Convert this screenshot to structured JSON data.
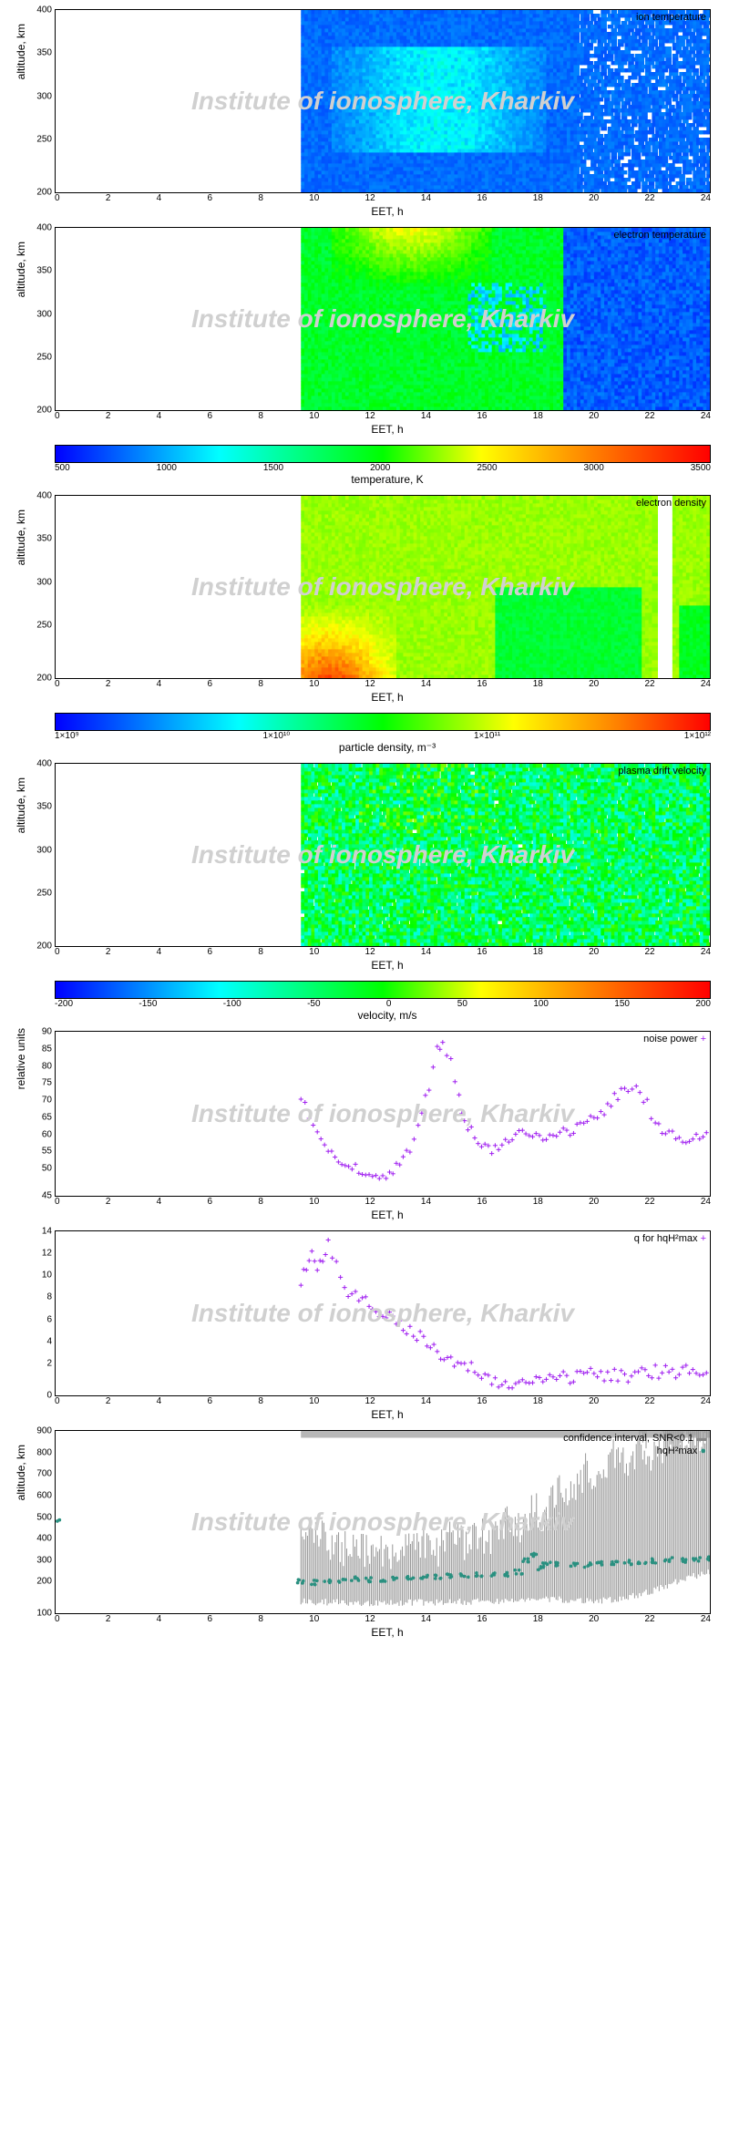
{
  "watermark": "Institute of ionosphere, Kharkiv",
  "xaxis": {
    "label": "EET, h",
    "ticks": [
      0,
      2,
      4,
      6,
      8,
      10,
      12,
      14,
      16,
      18,
      20,
      22,
      24
    ],
    "min": 0,
    "max": 24,
    "data_start": 9
  },
  "alt_axis": {
    "label": "altitude, km",
    "ticks": [
      200,
      250,
      300,
      350,
      400
    ],
    "min": 200,
    "max": 400
  },
  "temp_colorbar": {
    "label": "temperature, K",
    "ticks": [
      500,
      1000,
      1500,
      2000,
      2500,
      3000,
      3500
    ],
    "min": 500,
    "max": 3500,
    "gradient": "linear-gradient(to right,#0000ff 0%,#00ffff 25%,#00ff00 50%,#ffff00 65%,#ff8000 82%,#ff0000 100%)"
  },
  "density_colorbar": {
    "label": "particle density, m⁻³",
    "ticks": [
      "1×10⁹",
      "1×10¹⁰",
      "1×10¹¹",
      "1×10¹²"
    ],
    "gradient": "linear-gradient(to right,#0000ff 0%,#00ffff 28%,#00ff00 50%,#ffff00 70%,#ff8000 86%,#ff0000 100%)"
  },
  "velocity_colorbar": {
    "label": "velocity, m/s",
    "ticks": [
      -200,
      -150,
      -100,
      -50,
      0,
      50,
      100,
      150,
      200
    ],
    "gradient": "linear-gradient(to right,#0000ff 0%,#00ffff 25%,#00ff00 50%,#ffff00 65%,#ff8000 82%,#ff0000 100%)"
  },
  "panels": {
    "ion_temp": {
      "title": "ion temperature",
      "base_color": "#0020e0",
      "accent": "#20c060"
    },
    "elec_temp": {
      "title": "electron temperature"
    },
    "elec_dens": {
      "title": "electron density"
    },
    "drift": {
      "title": "plasma drift velocity"
    },
    "noise": {
      "title": "noise power",
      "ylabel": "relative units",
      "yticks": [
        45,
        50,
        55,
        60,
        65,
        70,
        75,
        80,
        85,
        90
      ],
      "color": "#a020f0",
      "data": [
        [
          9,
          73
        ],
        [
          9.3,
          67
        ],
        [
          9.6,
          63
        ],
        [
          10,
          58
        ],
        [
          10.5,
          55
        ],
        [
          11,
          53
        ],
        [
          11.5,
          51
        ],
        [
          12,
          50
        ],
        [
          12.5,
          53
        ],
        [
          13,
          58
        ],
        [
          13.3,
          65
        ],
        [
          13.7,
          75
        ],
        [
          14,
          85
        ],
        [
          14.2,
          87
        ],
        [
          14.5,
          82
        ],
        [
          14.8,
          72
        ],
        [
          15,
          65
        ],
        [
          15.5,
          60
        ],
        [
          16,
          58
        ],
        [
          16.5,
          60
        ],
        [
          17,
          62
        ],
        [
          17.5,
          61
        ],
        [
          18,
          60
        ],
        [
          18.5,
          62
        ],
        [
          19,
          63
        ],
        [
          19.5,
          65
        ],
        [
          20,
          67
        ],
        [
          20.5,
          72
        ],
        [
          21,
          75
        ],
        [
          21.3,
          74
        ],
        [
          21.7,
          70
        ],
        [
          22,
          65
        ],
        [
          22.5,
          62
        ],
        [
          23,
          60
        ],
        [
          23.5,
          61
        ],
        [
          24,
          62
        ]
      ]
    },
    "q": {
      "title": "q for hqH²max",
      "yticks": [
        0,
        2,
        4,
        6,
        8,
        10,
        12,
        14
      ],
      "color": "#a020f0",
      "data": [
        [
          9,
          10
        ],
        [
          9.2,
          11
        ],
        [
          9.4,
          12.5
        ],
        [
          9.6,
          11
        ],
        [
          9.8,
          12
        ],
        [
          10,
          13
        ],
        [
          10.3,
          11.5
        ],
        [
          10.6,
          9
        ],
        [
          11,
          8.5
        ],
        [
          11.5,
          8
        ],
        [
          12,
          7
        ],
        [
          12.5,
          6.5
        ],
        [
          13,
          5.5
        ],
        [
          13.5,
          5
        ],
        [
          14,
          3.5
        ],
        [
          14.5,
          3
        ],
        [
          15,
          2.5
        ],
        [
          15.5,
          2
        ],
        [
          16,
          1.5
        ],
        [
          16.5,
          1
        ],
        [
          17,
          0.8
        ],
        [
          17.5,
          1
        ],
        [
          18,
          1.2
        ],
        [
          18.5,
          1.5
        ],
        [
          19,
          1.5
        ],
        [
          19.5,
          1.8
        ],
        [
          20,
          1.6
        ],
        [
          20.5,
          1.8
        ],
        [
          21,
          1.7
        ],
        [
          21.5,
          1.9
        ],
        [
          22,
          2
        ],
        [
          22.5,
          2
        ],
        [
          23,
          2.1
        ],
        [
          23.5,
          2
        ],
        [
          24,
          2
        ]
      ]
    },
    "conf": {
      "title1": "confidence interval, SNR<0.1",
      "title2": "hqH²max",
      "ylabel": "altitude, km",
      "yticks": [
        100,
        200,
        300,
        400,
        500,
        600,
        700,
        800,
        900
      ],
      "gray_top": [
        [
          9,
          500
        ],
        [
          9.5,
          470
        ],
        [
          10,
          420
        ],
        [
          10.5,
          380
        ],
        [
          11,
          400
        ],
        [
          11.5,
          360
        ],
        [
          12,
          380
        ],
        [
          12.5,
          350
        ],
        [
          13,
          400
        ],
        [
          13.5,
          420
        ],
        [
          14,
          380
        ],
        [
          14.5,
          440
        ],
        [
          15,
          400
        ],
        [
          15.5,
          450
        ],
        [
          16,
          420
        ],
        [
          16.5,
          500
        ],
        [
          17,
          480
        ],
        [
          17.5,
          560
        ],
        [
          18,
          520
        ],
        [
          18.5,
          680
        ],
        [
          19,
          620
        ],
        [
          19.5,
          750
        ],
        [
          20,
          680
        ],
        [
          20.5,
          800
        ],
        [
          21,
          720
        ],
        [
          21.5,
          850
        ],
        [
          22,
          780
        ],
        [
          22.5,
          870
        ],
        [
          23,
          840
        ],
        [
          23.5,
          880
        ],
        [
          24,
          860
        ]
      ],
      "gray_bot": [
        [
          9,
          150
        ],
        [
          12,
          145
        ],
        [
          15,
          150
        ],
        [
          18,
          160
        ],
        [
          20,
          155
        ],
        [
          21,
          170
        ],
        [
          22,
          200
        ],
        [
          23,
          250
        ],
        [
          24,
          280
        ]
      ],
      "teal_color": "#2a9080",
      "teal": [
        [
          0,
          500
        ],
        [
          9,
          240
        ],
        [
          9.5,
          235
        ],
        [
          10,
          240
        ],
        [
          10.5,
          245
        ],
        [
          11,
          250
        ],
        [
          11.5,
          248
        ],
        [
          12,
          245
        ],
        [
          12.5,
          250
        ],
        [
          13,
          255
        ],
        [
          13.5,
          258
        ],
        [
          14,
          260
        ],
        [
          14.5,
          262
        ],
        [
          15,
          265
        ],
        [
          15.5,
          268
        ],
        [
          16,
          270
        ],
        [
          16.5,
          272
        ],
        [
          17,
          280
        ],
        [
          17.2,
          330
        ],
        [
          17.5,
          355
        ],
        [
          17.8,
          300
        ],
        [
          18,
          320
        ],
        [
          18.5,
          315
        ],
        [
          19,
          310
        ],
        [
          19.5,
          312
        ],
        [
          20,
          318
        ],
        [
          20.5,
          320
        ],
        [
          21,
          322
        ],
        [
          21.5,
          328
        ],
        [
          22,
          330
        ],
        [
          22.5,
          334
        ],
        [
          23,
          330
        ],
        [
          23.5,
          338
        ],
        [
          24,
          340
        ]
      ]
    }
  }
}
